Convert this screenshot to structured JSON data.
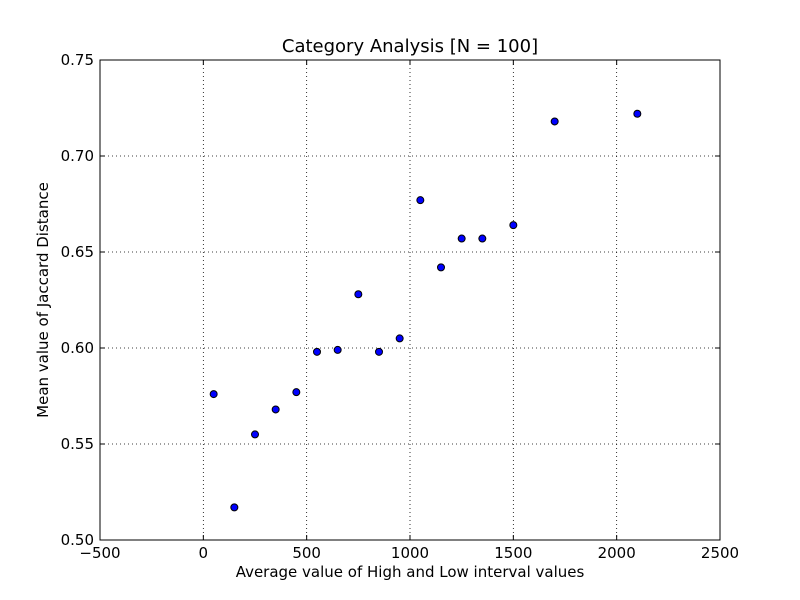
{
  "chart_data": {
    "type": "scatter",
    "title": "Category Analysis [N = 100]",
    "xlabel": "Average value of High and Low interval values",
    "ylabel": "Mean value of Jaccard Distance",
    "xlim": [
      -500,
      2500
    ],
    "ylim": [
      0.5,
      0.75
    ],
    "xticks": [
      -500,
      0,
      500,
      1000,
      1500,
      2000,
      2500
    ],
    "xtick_labels": [
      "−500",
      "0",
      "500",
      "1000",
      "1500",
      "2000",
      "2500"
    ],
    "yticks": [
      0.5,
      0.55,
      0.6,
      0.65,
      0.7,
      0.75
    ],
    "ytick_labels": [
      "0.50",
      "0.55",
      "0.60",
      "0.65",
      "0.70",
      "0.75"
    ],
    "grid": true,
    "colors": {
      "marker_fill": "#0000ff",
      "marker_edge": "#000000"
    },
    "points": [
      {
        "x": 50,
        "y": 0.576
      },
      {
        "x": 150,
        "y": 0.517
      },
      {
        "x": 250,
        "y": 0.555
      },
      {
        "x": 350,
        "y": 0.568
      },
      {
        "x": 450,
        "y": 0.577
      },
      {
        "x": 550,
        "y": 0.598
      },
      {
        "x": 650,
        "y": 0.599
      },
      {
        "x": 750,
        "y": 0.628
      },
      {
        "x": 850,
        "y": 0.598
      },
      {
        "x": 950,
        "y": 0.605
      },
      {
        "x": 1050,
        "y": 0.677
      },
      {
        "x": 1150,
        "y": 0.642
      },
      {
        "x": 1250,
        "y": 0.657
      },
      {
        "x": 1350,
        "y": 0.657
      },
      {
        "x": 1500,
        "y": 0.664
      },
      {
        "x": 1700,
        "y": 0.718
      },
      {
        "x": 2100,
        "y": 0.722
      }
    ]
  }
}
